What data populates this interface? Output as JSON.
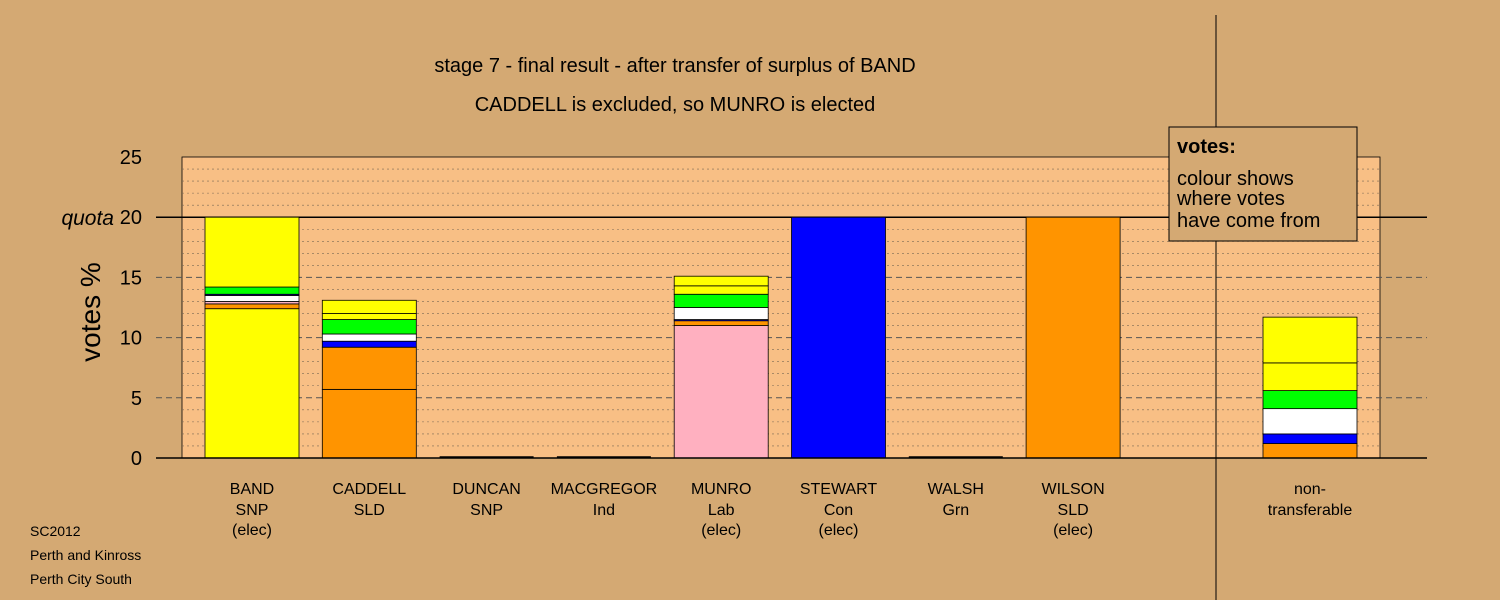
{
  "chart_data": {
    "type": "bar",
    "stacked": true,
    "title": "stage 7 - final result - after transfer of surplus of BAND",
    "subtitle": "CADDELL is excluded, so MUNRO is elected",
    "ylabel": "votes %",
    "ylim": [
      0,
      25
    ],
    "yticks": [
      "0",
      "5",
      "10",
      "15",
      "20",
      "25"
    ],
    "quota": 20,
    "quota_label": "quota",
    "grid": true,
    "colors": {
      "page_bg": "#D4A973",
      "plot_bg": "#F8BF85",
      "SNP": "#FFFF00",
      "SLD": "#FF9400",
      "Con": "#0000FF",
      "Lab": "#FFB0C0",
      "Grn": "#00FF00",
      "Ind": "#FFFFFF"
    },
    "candidates": [
      {
        "name": "BAND",
        "party": "SNP",
        "status": "(elec)",
        "total": 20,
        "segments": [
          {
            "from": "SNP",
            "value": 12.4
          },
          {
            "from": "SLD",
            "value": 0.4
          },
          {
            "from": "Lab",
            "value": 0.2
          },
          {
            "from": "Ind",
            "value": 0.5
          },
          {
            "from": "Con",
            "value": 0.1
          },
          {
            "from": "Grn",
            "value": 0.6
          },
          {
            "from": "SNP",
            "value": 5.8
          }
        ]
      },
      {
        "name": "CADDELL",
        "party": "SLD",
        "status": "",
        "total": 13.1,
        "segments": [
          {
            "from": "SLD",
            "value": 5.7
          },
          {
            "from": "SLD",
            "value": 3.5
          },
          {
            "from": "Con",
            "value": 0.5
          },
          {
            "from": "Ind",
            "value": 0.6
          },
          {
            "from": "Grn",
            "value": 1.2
          },
          {
            "from": "SNP",
            "value": 0.5
          },
          {
            "from": "SNP",
            "value": 1.1
          }
        ]
      },
      {
        "name": "DUNCAN",
        "party": "SNP",
        "status": "",
        "total": 0,
        "segments": []
      },
      {
        "name": "MACGREGOR",
        "party": "Ind",
        "status": "",
        "total": 0,
        "segments": []
      },
      {
        "name": "MUNRO",
        "party": "Lab",
        "status": "(elec)",
        "total": 15.1,
        "segments": [
          {
            "from": "Lab",
            "value": 11
          },
          {
            "from": "SLD",
            "value": 0.4
          },
          {
            "from": "Con",
            "value": 0.1
          },
          {
            "from": "Ind",
            "value": 1.0
          },
          {
            "from": "Grn",
            "value": 1.1
          },
          {
            "from": "SNP",
            "value": 0.7
          },
          {
            "from": "SNP",
            "value": 0.8
          }
        ]
      },
      {
        "name": "STEWART",
        "party": "Con",
        "status": "(elec)",
        "total": 20,
        "segments": [
          {
            "from": "Con",
            "value": 20
          }
        ]
      },
      {
        "name": "WALSH",
        "party": "Grn",
        "status": "",
        "total": 0,
        "segments": []
      },
      {
        "name": "WILSON",
        "party": "SLD",
        "status": "(elec)",
        "total": 20,
        "segments": [
          {
            "from": "SLD",
            "value": 20
          }
        ]
      }
    ],
    "nontransferable": {
      "label_line1": "non-",
      "label_line2": "transferable",
      "total": 11.7,
      "segments": [
        {
          "from": "SLD",
          "value": 1.2
        },
        {
          "from": "Con",
          "value": 0.8
        },
        {
          "from": "Ind",
          "value": 2.1
        },
        {
          "from": "Grn",
          "value": 1.5
        },
        {
          "from": "SNP",
          "value": 2.3
        },
        {
          "from": "SNP",
          "value": 3.8
        }
      ]
    },
    "legend": {
      "placement": "top-right",
      "heading": "votes:",
      "lines": [
        "colour shows",
        "where votes",
        "have come from"
      ]
    }
  },
  "source": {
    "line1": "SC2012",
    "line2": "Perth and Kinross",
    "line3": "Perth City South"
  }
}
